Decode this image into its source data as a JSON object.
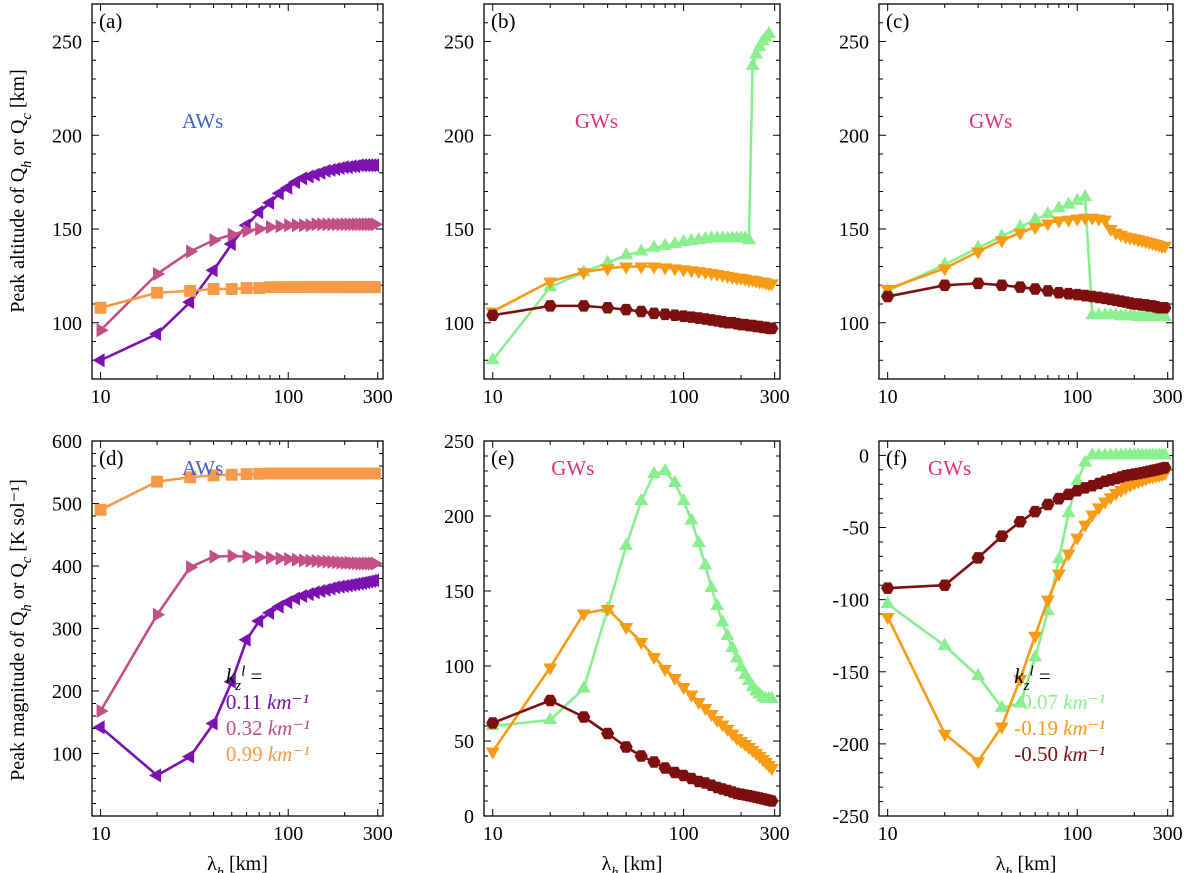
{
  "figure": {
    "ylabel_top": "Peak altitude of Q_h or Q_c [km]",
    "ylabel_bottom": "Peak magnitude of Q_h or Q_c [K sol⁻¹]",
    "xlabel": "λ_h [km]"
  },
  "colors": {
    "aw_purple": "#7a12b0",
    "aw_pink": "#c24f86",
    "aw_orange": "#f79a47",
    "gw_green": "#8af08f",
    "gw_orange": "#f89b14",
    "gw_darkred": "#7d0f0f",
    "aw_label": "#3f62cc",
    "gw_label": "#e0307c"
  },
  "x_common": [
    10,
    20,
    30,
    40,
    50,
    60,
    70,
    80,
    90,
    100,
    110,
    120,
    130,
    140,
    150,
    160,
    170,
    180,
    190,
    200,
    210,
    220,
    230,
    240,
    250,
    260,
    270,
    280,
    290
  ],
  "chart_data": [
    {
      "id": "a",
      "panel_label": "(a)",
      "type": "line",
      "title": "AWs",
      "title_color": "aw_label",
      "xscale": "log",
      "xlim": [
        9,
        320
      ],
      "ylim": [
        70,
        270
      ],
      "xticks": [
        10,
        100,
        300
      ],
      "yticks": [
        100,
        150,
        200,
        250
      ],
      "show_xlabel": false,
      "series": [
        {
          "name": "0.11 km^-1",
          "color": "aw_purple",
          "marker": "triangle-left",
          "values": [
            80,
            94,
            111,
            128,
            142,
            152,
            159,
            164,
            169,
            172,
            175,
            177,
            178,
            179,
            180,
            181,
            181.5,
            182,
            182.5,
            183,
            183,
            183.5,
            183.5,
            184,
            184,
            184,
            184,
            184,
            184
          ]
        },
        {
          "name": "0.32 km^-1",
          "color": "aw_pink",
          "marker": "triangle-right",
          "values": [
            96,
            126,
            138,
            144,
            147,
            149,
            150,
            151,
            151.5,
            152,
            152,
            152,
            152,
            152.5,
            152.5,
            152.5,
            152.5,
            152.5,
            152.5,
            152.5,
            152.5,
            152.5,
            152.5,
            152.5,
            152.5,
            152.5,
            152.5,
            152.5,
            152.5
          ]
        },
        {
          "name": "0.99 km^-1",
          "color": "aw_orange",
          "marker": "square",
          "values": [
            108,
            116,
            117,
            118,
            118,
            118.5,
            118.5,
            119,
            119,
            119,
            119,
            119,
            119,
            119,
            119,
            119,
            119,
            119,
            119,
            119,
            119,
            119,
            119,
            119,
            119,
            119,
            119,
            119,
            119
          ]
        }
      ]
    },
    {
      "id": "b",
      "panel_label": "(b)",
      "type": "line",
      "title": "GWs",
      "title_color": "gw_label",
      "xscale": "log",
      "xlim": [
        9,
        320
      ],
      "ylim": [
        70,
        270
      ],
      "xticks": [
        10,
        100,
        300
      ],
      "yticks": [
        100,
        150,
        200,
        250
      ],
      "show_xlabel": false,
      "series": [
        {
          "name": "-0.07 km^-1",
          "color": "gw_green",
          "marker": "triangle-up",
          "x": [
            10,
            20,
            30,
            40,
            50,
            60,
            70,
            80,
            90,
            100,
            110,
            120,
            130,
            140,
            150,
            160,
            170,
            180,
            190,
            200,
            210,
            220,
            230,
            240,
            250,
            260,
            270,
            280
          ],
          "values": [
            80,
            119,
            127,
            132,
            136,
            138,
            140,
            141,
            142,
            143,
            143.5,
            144,
            144.5,
            145,
            145,
            145,
            145,
            145,
            145,
            145,
            145,
            144,
            237,
            243,
            247,
            250,
            252,
            254
          ]
        },
        {
          "name": "-0.19 km^-1",
          "color": "gw_orange",
          "marker": "triangle-down",
          "values": [
            106,
            122,
            127,
            129,
            130,
            130,
            130,
            129.5,
            129,
            128.5,
            128,
            127.5,
            127,
            126.5,
            126,
            125.5,
            125,
            124.5,
            124,
            124,
            123.5,
            123,
            123,
            122.5,
            122,
            122,
            121.5,
            121,
            121
          ]
        },
        {
          "name": "-0.50 km^-1",
          "color": "gw_darkred",
          "marker": "hexagon",
          "values": [
            104,
            109,
            109,
            108,
            107,
            106,
            105,
            104.5,
            104,
            103.5,
            103,
            102.5,
            102,
            101.5,
            101,
            100.5,
            100,
            100,
            99.5,
            99,
            99,
            98.5,
            98.5,
            98,
            98,
            97.5,
            97.5,
            97,
            97
          ]
        }
      ]
    },
    {
      "id": "c",
      "panel_label": "(c)",
      "type": "line",
      "title": "GWs",
      "title_color": "gw_label",
      "xscale": "log",
      "xlim": [
        9,
        320
      ],
      "ylim": [
        70,
        270
      ],
      "xticks": [
        10,
        100,
        300
      ],
      "yticks": [
        100,
        150,
        200,
        250
      ],
      "show_xlabel": false,
      "series": [
        {
          "name": "-0.07 km^-1",
          "color": "gw_green",
          "marker": "triangle-up",
          "x": [
            10,
            20,
            30,
            40,
            50,
            60,
            70,
            80,
            90,
            100,
            110,
            120,
            130,
            140,
            150,
            160,
            170,
            180,
            190,
            200,
            210,
            220,
            230,
            240,
            250,
            260,
            270,
            280,
            290
          ],
          "values": [
            117,
            131,
            140,
            146,
            151,
            155,
            158,
            161,
            163,
            165,
            167,
            104,
            104,
            104,
            104,
            104,
            103.5,
            103.5,
            103.5,
            103.5,
            103,
            103,
            103,
            103,
            103,
            103,
            103,
            103,
            103
          ]
        },
        {
          "name": "-0.19 km^-1",
          "color": "gw_orange",
          "marker": "triangle-down",
          "values": [
            118,
            129,
            138,
            144,
            148,
            151,
            153,
            154.5,
            155,
            155.5,
            156,
            156,
            155.5,
            155,
            150,
            148,
            147,
            146,
            145.5,
            145,
            144.5,
            144,
            143.5,
            143,
            142.5,
            142,
            141.5,
            141,
            141
          ]
        },
        {
          "name": "-0.50 km^-1",
          "color": "gw_darkred",
          "marker": "hexagon",
          "values": [
            114,
            120,
            121,
            120,
            119,
            118,
            117,
            116,
            115.5,
            115,
            114.5,
            114,
            113.5,
            113,
            112.5,
            112,
            111.5,
            111,
            110.5,
            110,
            110,
            109.5,
            109.5,
            109,
            109,
            108.5,
            108,
            108,
            108
          ]
        }
      ]
    },
    {
      "id": "d",
      "panel_label": "(d)",
      "type": "line",
      "title": "AWs",
      "title_color": "aw_label",
      "xscale": "log",
      "xlim": [
        9,
        320
      ],
      "ylim": [
        0,
        600
      ],
      "xticks": [
        10,
        100,
        300
      ],
      "yticks": [
        100,
        200,
        300,
        400,
        500,
        600
      ],
      "show_xlabel": true,
      "legend": {
        "title": "k_z^l =",
        "position": "lower-right"
      },
      "series": [
        {
          "name": "0.11 km⁻¹",
          "color": "aw_purple",
          "marker": "triangle-left",
          "values": [
            142,
            65,
            95,
            148,
            215,
            282,
            312,
            325,
            335,
            342,
            348,
            352,
            355,
            358,
            360,
            362,
            364,
            366,
            367,
            368,
            369,
            370,
            371,
            372,
            373,
            374,
            375,
            376,
            377
          ]
        },
        {
          "name": "0.32 km⁻¹",
          "color": "aw_pink",
          "marker": "triangle-right",
          "values": [
            168,
            322,
            398,
            415,
            416,
            415,
            414,
            413,
            412,
            411,
            410,
            409,
            408.5,
            408,
            407.5,
            407,
            406.5,
            406,
            405.5,
            405,
            405,
            404.5,
            404.5,
            404,
            404,
            404,
            404,
            404,
            404
          ]
        },
        {
          "name": "0.99 km⁻¹",
          "color": "aw_orange",
          "marker": "square",
          "values": [
            490,
            535,
            542,
            545,
            546,
            547,
            547.5,
            548,
            548,
            548,
            548,
            548,
            548,
            548,
            548,
            548,
            548,
            548,
            548,
            548,
            548,
            548,
            548,
            548,
            548,
            548,
            548,
            548,
            548
          ]
        }
      ]
    },
    {
      "id": "e",
      "panel_label": "(e)",
      "type": "line",
      "title": "GWs",
      "title_color": "gw_label",
      "xscale": "log",
      "xlim": [
        9,
        320
      ],
      "ylim": [
        0,
        250
      ],
      "xticks": [
        10,
        100,
        300
      ],
      "yticks": [
        0,
        50,
        100,
        150,
        200,
        250
      ],
      "show_xlabel": true,
      "series": [
        {
          "name": "-0.07 km^-1",
          "color": "gw_green",
          "marker": "triangle-up",
          "values": [
            60,
            64,
            85,
            138,
            180,
            210,
            228,
            230,
            222,
            210,
            197,
            182,
            167,
            152,
            140,
            129,
            120,
            112,
            105,
            99,
            94,
            90,
            86,
            83,
            81,
            79,
            78,
            78,
            78
          ]
        },
        {
          "name": "-0.19 km^-1",
          "color": "gw_orange",
          "marker": "triangle-down",
          "values": [
            43,
            99,
            135,
            138,
            126,
            116,
            106,
            98,
            92,
            86,
            81,
            76,
            72,
            68,
            64,
            61,
            58,
            55,
            52,
            50,
            48,
            46,
            44,
            42,
            40,
            38,
            36,
            34,
            32
          ]
        },
        {
          "name": "-0.50 km^-1",
          "color": "gw_darkred",
          "marker": "hexagon",
          "values": [
            62,
            77,
            66,
            55,
            46,
            40,
            36,
            32,
            29,
            27,
            25,
            23,
            22,
            20.5,
            19,
            18,
            17,
            16,
            15,
            14.5,
            14,
            13.5,
            13,
            12.5,
            12,
            11.5,
            11,
            10.5,
            10
          ]
        }
      ]
    },
    {
      "id": "f",
      "panel_label": "(f)",
      "type": "line",
      "title": "GWs",
      "title_color": "gw_label",
      "xscale": "log",
      "xlim": [
        9,
        320
      ],
      "ylim": [
        -250,
        10
      ],
      "xticks": [
        10,
        100,
        300
      ],
      "yticks": [
        0,
        -50,
        -100,
        -150,
        -200,
        -250
      ],
      "show_xlabel": true,
      "legend": {
        "title": "k_z^l =",
        "position": "lower-right"
      },
      "series": [
        {
          "name": "-0.07 km⁻¹",
          "color": "gw_green",
          "marker": "triangle-up",
          "values": [
            -103,
            -132,
            -153,
            -175,
            -172,
            -140,
            -108,
            -72,
            -40,
            -18,
            -5,
            0,
            0,
            0,
            0,
            0,
            0,
            0,
            0,
            0,
            0,
            0,
            0,
            0,
            0,
            0,
            0,
            0,
            0
          ]
        },
        {
          "name": "-0.19 km⁻¹",
          "color": "gw_orange",
          "marker": "triangle-down",
          "values": [
            -112,
            -193,
            -212,
            -188,
            -155,
            -125,
            -100,
            -82,
            -68,
            -57,
            -48,
            -41,
            -36,
            -32,
            -29,
            -26,
            -24,
            -22,
            -20.5,
            -19,
            -18,
            -17,
            -16,
            -15,
            -14.5,
            -14,
            -13.5,
            -13,
            -12
          ]
        },
        {
          "name": "-0.50 km⁻¹",
          "color": "gw_darkred",
          "marker": "hexagon",
          "values": [
            -92,
            -90,
            -71,
            -56,
            -46,
            -39,
            -34,
            -30,
            -27,
            -24.5,
            -22.5,
            -21,
            -19.5,
            -18,
            -17,
            -16,
            -15,
            -14,
            -13.5,
            -13,
            -12.5,
            -12,
            -11.5,
            -11,
            -10.5,
            -10,
            -9.5,
            -9,
            -8.5
          ]
        }
      ]
    }
  ]
}
